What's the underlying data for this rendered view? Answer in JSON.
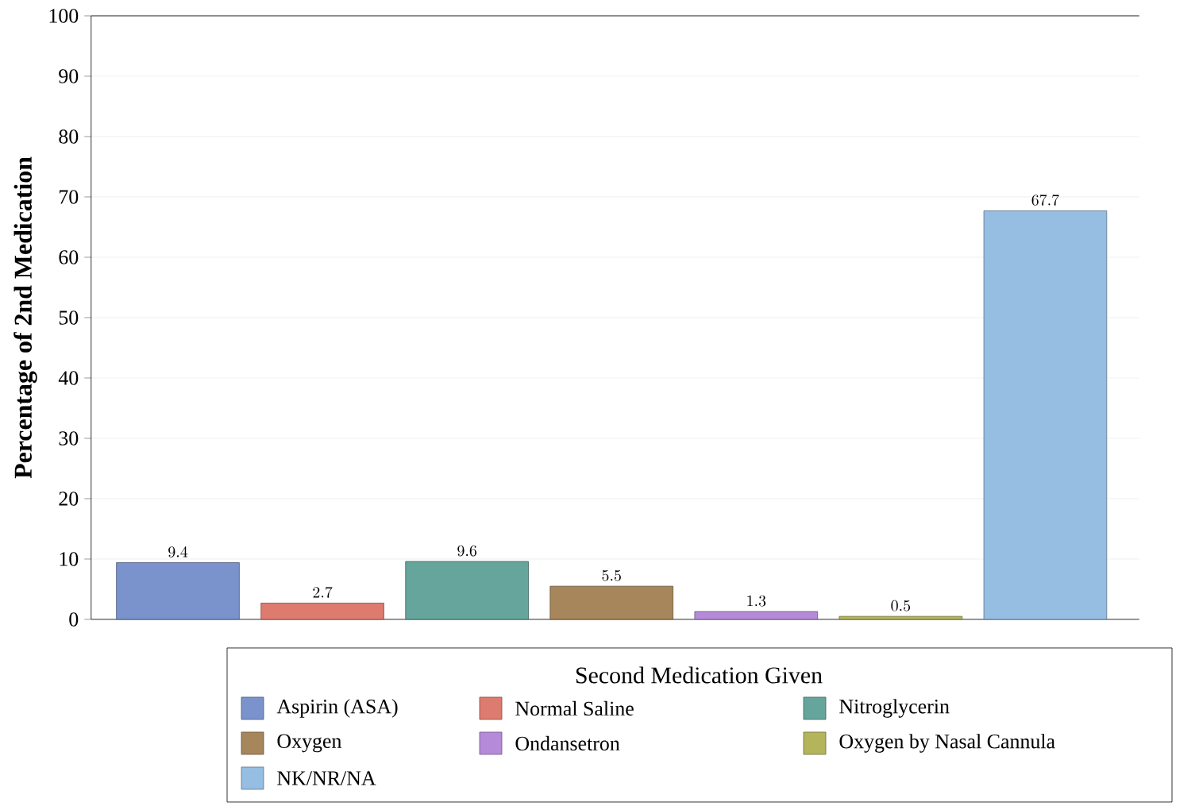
{
  "chart_data": {
    "type": "bar",
    "ylabel": "Percentage of 2nd Medication",
    "legend_title": "Second Medication Given",
    "categories": [
      null,
      null,
      null,
      null,
      null,
      null,
      null
    ],
    "series": [
      {
        "name": "Aspirin (ASA)",
        "color": "#7b93cc",
        "values": [
          9.4,
          null,
          null,
          null,
          null,
          null,
          null
        ]
      },
      {
        "name": "Normal Saline",
        "color": "#dd7b6f",
        "values": [
          null,
          2.7,
          null,
          null,
          null,
          null,
          null
        ]
      },
      {
        "name": "Nitroglycerin",
        "color": "#66a59c",
        "values": [
          null,
          null,
          9.6,
          null,
          null,
          null,
          null
        ]
      },
      {
        "name": "Oxygen",
        "color": "#a6865a",
        "values": [
          null,
          null,
          null,
          5.5,
          null,
          null,
          null
        ]
      },
      {
        "name": "Ondansetron",
        "color": "#b58ad8",
        "values": [
          null,
          null,
          null,
          null,
          1.3,
          null,
          null
        ]
      },
      {
        "name": "Oxygen by Nasal Cannula",
        "color": "#b4b55a",
        "values": [
          null,
          null,
          null,
          null,
          null,
          0.5,
          null
        ]
      },
      {
        "name": "NK/NR/NA",
        "color": "#96bde2",
        "values": [
          null,
          null,
          null,
          null,
          null,
          null,
          67.7
        ]
      }
    ],
    "ylim": [
      0,
      100
    ],
    "yticks": [
      0,
      10,
      20,
      30,
      40,
      50,
      60,
      70,
      80,
      90,
      100
    ],
    "grid": "y",
    "legend": "bottom",
    "data_labels": true
  }
}
